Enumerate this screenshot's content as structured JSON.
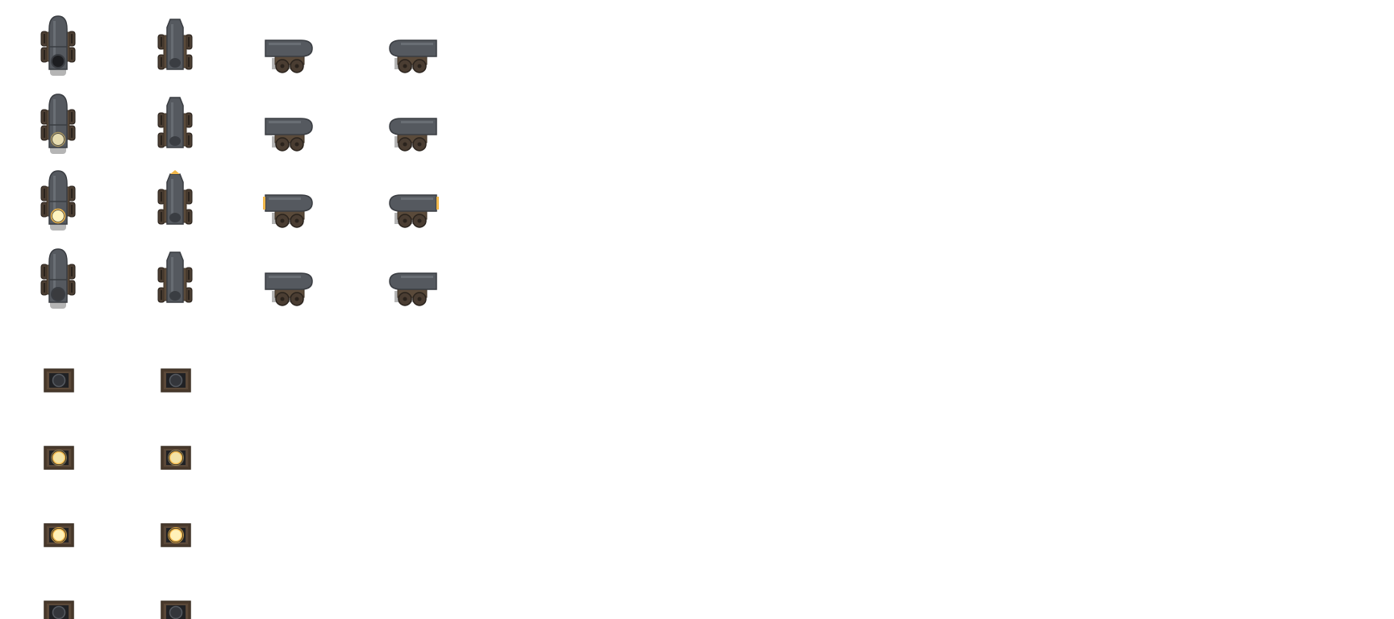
{
  "sheet": {
    "background": "#ffffff",
    "colors": {
      "barrel": "#55595f",
      "barrel_highlight": "#7e838a",
      "barrel_dark": "#3a3d42",
      "carriage": "#5a4a3a",
      "carriage_dark": "#3e3226",
      "wheel": "#4a3d32",
      "wheel_hub": "#2a231d",
      "shadow": "#b5b5b5",
      "bore": "#1c1d20",
      "glow_dim": "#a89562",
      "glow_bright": "#fff3bf",
      "flash": "#f2b84b",
      "port_frame": "#4a3a2c",
      "port_frame_light": "#6e5a46"
    },
    "cannon_frames": [
      {
        "row": 1,
        "col": 1,
        "facing": "front",
        "muzzle_state": "idle"
      },
      {
        "row": 1,
        "col": 2,
        "facing": "back",
        "muzzle_state": "idle"
      },
      {
        "row": 1,
        "col": 3,
        "facing": "side-left",
        "muzzle_state": "idle"
      },
      {
        "row": 1,
        "col": 4,
        "facing": "side-right",
        "muzzle_state": "idle"
      },
      {
        "row": 2,
        "col": 1,
        "facing": "front",
        "muzzle_state": "charging"
      },
      {
        "row": 2,
        "col": 2,
        "facing": "back",
        "muzzle_state": "idle"
      },
      {
        "row": 2,
        "col": 3,
        "facing": "side-left",
        "muzzle_state": "idle"
      },
      {
        "row": 2,
        "col": 4,
        "facing": "side-right",
        "muzzle_state": "idle"
      },
      {
        "row": 3,
        "col": 1,
        "facing": "front",
        "muzzle_state": "firing"
      },
      {
        "row": 3,
        "col": 2,
        "facing": "back",
        "muzzle_state": "firing"
      },
      {
        "row": 3,
        "col": 3,
        "facing": "side-left",
        "muzzle_state": "firing"
      },
      {
        "row": 3,
        "col": 4,
        "facing": "side-right",
        "muzzle_state": "firing"
      },
      {
        "row": 4,
        "col": 1,
        "facing": "front",
        "muzzle_state": "smoking"
      },
      {
        "row": 4,
        "col": 2,
        "facing": "back",
        "muzzle_state": "idle"
      },
      {
        "row": 4,
        "col": 3,
        "facing": "side-left",
        "muzzle_state": "idle"
      },
      {
        "row": 4,
        "col": 4,
        "facing": "side-right",
        "muzzle_state": "idle"
      }
    ],
    "port_frames": [
      {
        "row": 1,
        "col": 1,
        "glow": "none"
      },
      {
        "row": 1,
        "col": 2,
        "glow": "none"
      },
      {
        "row": 2,
        "col": 1,
        "glow": "dim"
      },
      {
        "row": 2,
        "col": 2,
        "glow": "dim"
      },
      {
        "row": 3,
        "col": 1,
        "glow": "bright"
      },
      {
        "row": 3,
        "col": 2,
        "glow": "bright"
      },
      {
        "row": 4,
        "col": 1,
        "glow": "none"
      },
      {
        "row": 4,
        "col": 2,
        "glow": "none"
      }
    ]
  }
}
